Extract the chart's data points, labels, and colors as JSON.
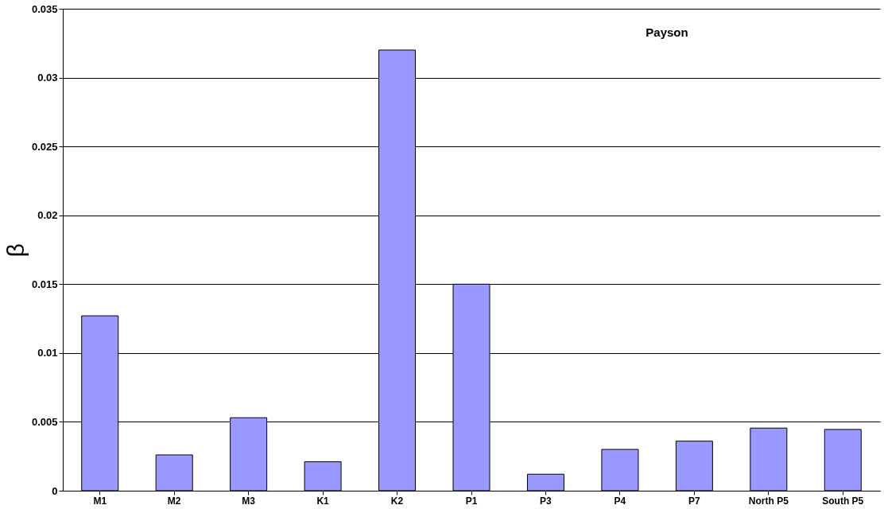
{
  "chart_data": {
    "type": "bar",
    "ylabel": "β",
    "categories": [
      "M1",
      "M2",
      "M3",
      "K1",
      "K2",
      "P1",
      "P3",
      "P4",
      "P7",
      "North P5",
      "South P5"
    ],
    "values": [
      0.0127,
      0.0026,
      0.0053,
      0.0021,
      0.032,
      0.015,
      0.0012,
      0.003,
      0.0036,
      0.00455,
      0.00445
    ],
    "color": "#9999ff",
    "ylim": [
      0,
      0.035
    ],
    "yticks": [
      0,
      0.005,
      0.01,
      0.015,
      0.02,
      0.025,
      0.03,
      0.035
    ],
    "grid": "y",
    "annotations": [
      "Payson"
    ]
  }
}
